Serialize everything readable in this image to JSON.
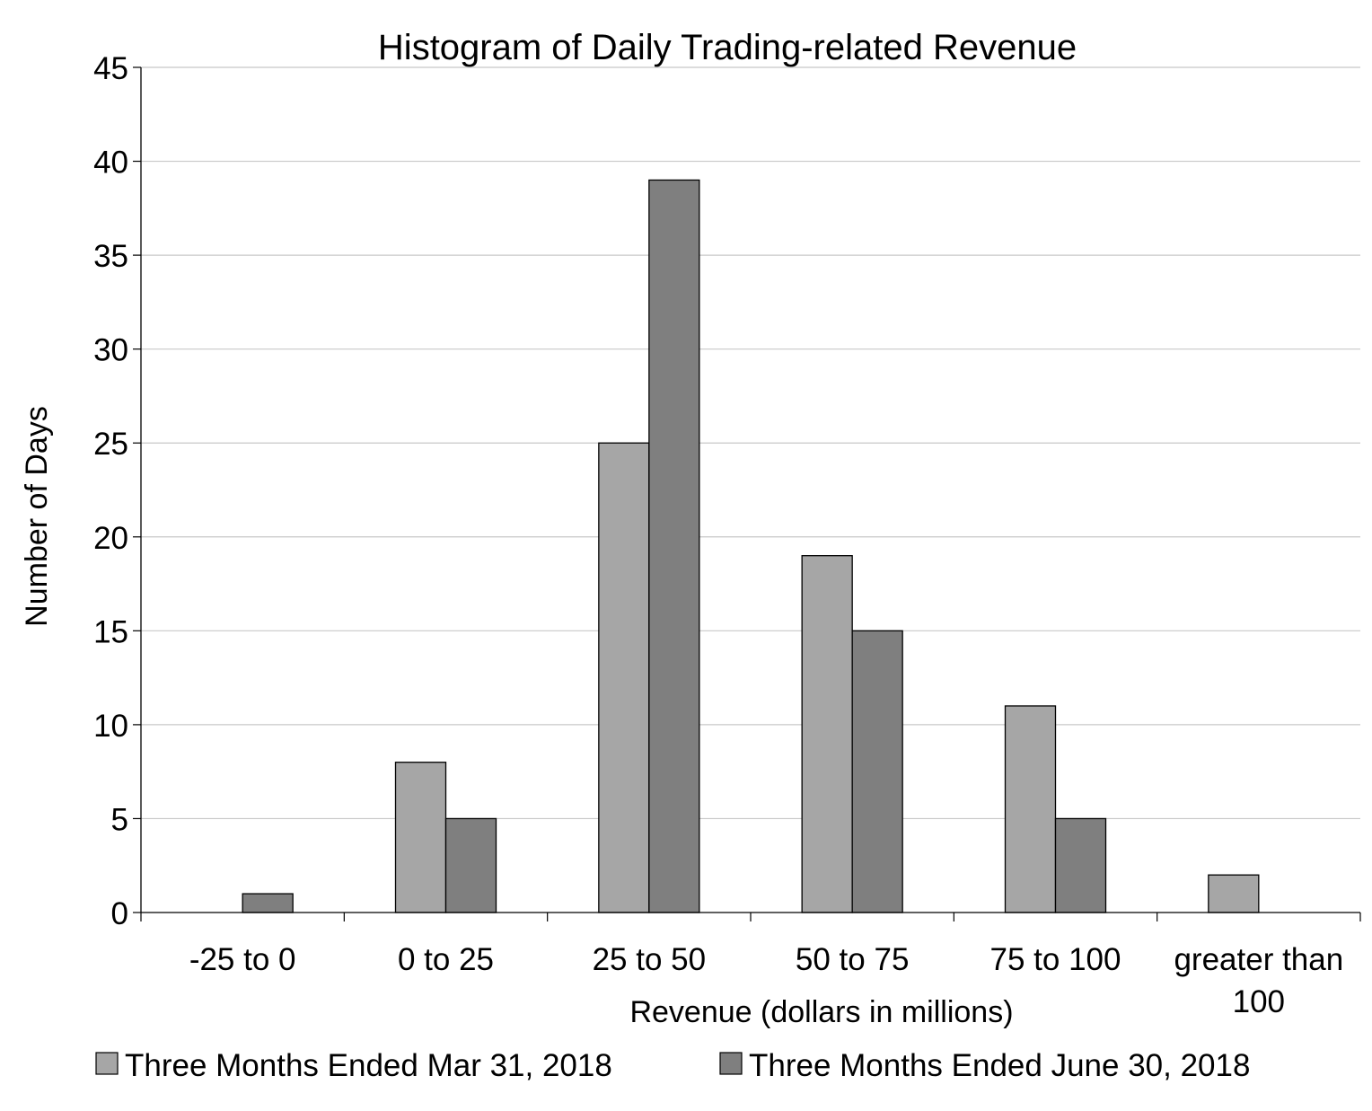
{
  "chart_data": {
    "type": "bar",
    "title": "Histogram of Daily Trading-related Revenue",
    "xlabel": "Revenue (dollars in millions)",
    "ylabel": "Number of Days",
    "categories": [
      [
        "-25 to 0"
      ],
      [
        "0 to 25"
      ],
      [
        "25 to 50"
      ],
      [
        "50 to 75"
      ],
      [
        "75 to 100"
      ],
      [
        "greater than",
        "100"
      ]
    ],
    "series": [
      {
        "name": "Three Months Ended Mar 31, 2018",
        "color": "#a6a6a6",
        "values": [
          0,
          8,
          25,
          19,
          11,
          2
        ]
      },
      {
        "name": "Three Months Ended June 30, 2018",
        "color": "#7f7f7f",
        "values": [
          1,
          5,
          39,
          15,
          5,
          0
        ]
      }
    ],
    "ylim": [
      0,
      45
    ],
    "yticks": [
      0,
      5,
      10,
      15,
      20,
      25,
      30,
      35,
      40,
      45
    ],
    "grid": true,
    "legend": "bottom"
  }
}
